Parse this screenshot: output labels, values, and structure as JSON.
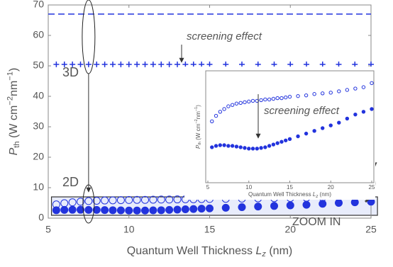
{
  "chart_data": {
    "type": "scatter",
    "xlabel": {
      "text": "Quantum Well Thickness ",
      "symbol": "L",
      "sub": "z",
      "unit": " (nm)"
    },
    "ylabel": {
      "symbol": "P",
      "sub": "th",
      "unit": " (W cm",
      "exp1": "−2",
      "unit2": "nm",
      "exp2": "−1",
      "close": ")"
    },
    "xlim": [
      5,
      25
    ],
    "ylim": [
      0,
      70
    ],
    "xticks": [
      5,
      10,
      15,
      20,
      25
    ],
    "yticks": [
      0,
      10,
      20,
      30,
      40,
      50,
      60,
      70
    ],
    "reference_line": {
      "value": 67,
      "color": "#2233dd",
      "style": "dashed"
    },
    "x": [
      5.5,
      6,
      6.5,
      7,
      7.5,
      8,
      8.5,
      9,
      9.5,
      10,
      10.5,
      11,
      11.5,
      12,
      12.5,
      13,
      13.5,
      14,
      14.5,
      15,
      16,
      17,
      18,
      19,
      20,
      21,
      22,
      23,
      24,
      25
    ],
    "series": [
      {
        "marker": "plus",
        "color": "#2233dd",
        "values": [
          50.5,
          50.5,
          50.5,
          50.5,
          50.5,
          50.5,
          50.5,
          50.5,
          50.5,
          50.5,
          50.5,
          50.5,
          50.5,
          50.5,
          50.5,
          50.5,
          50.5,
          50.5,
          50.5,
          50.5,
          50.5,
          50.5,
          50.5,
          50.5,
          50.5,
          50.5,
          50.5,
          50.5,
          50.5,
          50.5
        ]
      },
      {
        "marker": "open-circle",
        "color": "#2233dd",
        "values": [
          4.5,
          4.9,
          5.2,
          5.4,
          5.6,
          5.7,
          5.8,
          5.85,
          5.9,
          5.95,
          6.0,
          6.0,
          6.05,
          6.1,
          6.1,
          6.15,
          6.2,
          6.2,
          6.25,
          6.3,
          6.35,
          6.4,
          6.5,
          6.55,
          6.6,
          6.7,
          6.8,
          6.9,
          7.0,
          7.3
        ]
      },
      {
        "marker": "filled-circle",
        "color": "#2233dd",
        "values": [
          2.6,
          2.7,
          2.75,
          2.75,
          2.7,
          2.7,
          2.65,
          2.6,
          2.55,
          2.5,
          2.5,
          2.5,
          2.55,
          2.6,
          2.7,
          2.8,
          2.9,
          3.0,
          3.1,
          3.2,
          3.4,
          3.6,
          3.8,
          4.0,
          4.2,
          4.4,
          4.7,
          5.0,
          5.2,
          5.4
        ]
      }
    ],
    "annotations": {
      "screening": "screening effect",
      "three_d": "3D",
      "two_d": "2D",
      "zoom": "ZOOM IN"
    },
    "inset": {
      "xlim": [
        5,
        25
      ],
      "ylim": [
        0,
        8.2
      ],
      "xticks": [
        5,
        10,
        15,
        20,
        25
      ],
      "annotation": "screening effect"
    }
  }
}
